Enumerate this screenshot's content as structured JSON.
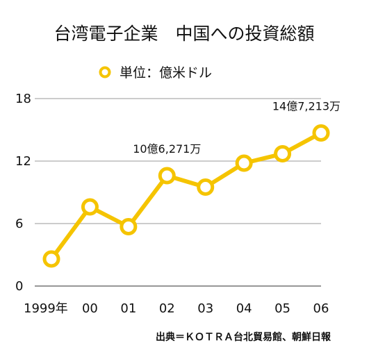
{
  "chart_data": {
    "type": "line",
    "title": "台湾電子企業　中国への投資総額",
    "legend": {
      "label": "単位：億米ドル",
      "placement": "top-center"
    },
    "categories": [
      "1999年",
      "00",
      "01",
      "02",
      "03",
      "04",
      "05",
      "06"
    ],
    "values": [
      2.6,
      7.6,
      5.7,
      10.6,
      9.5,
      11.8,
      12.7,
      14.7
    ],
    "series_color": "#f5c400",
    "marker": "hollow-circle",
    "ylim": [
      0,
      18
    ],
    "yticks": [
      0,
      6,
      12,
      18
    ],
    "grid": true,
    "annotations": [
      {
        "category": "02",
        "text": "10億6,271万"
      },
      {
        "category": "06",
        "text": "14億7,213万"
      }
    ],
    "source": "出典＝ＫＯＴＲＡ台北貿易館、朝鮮日報"
  }
}
